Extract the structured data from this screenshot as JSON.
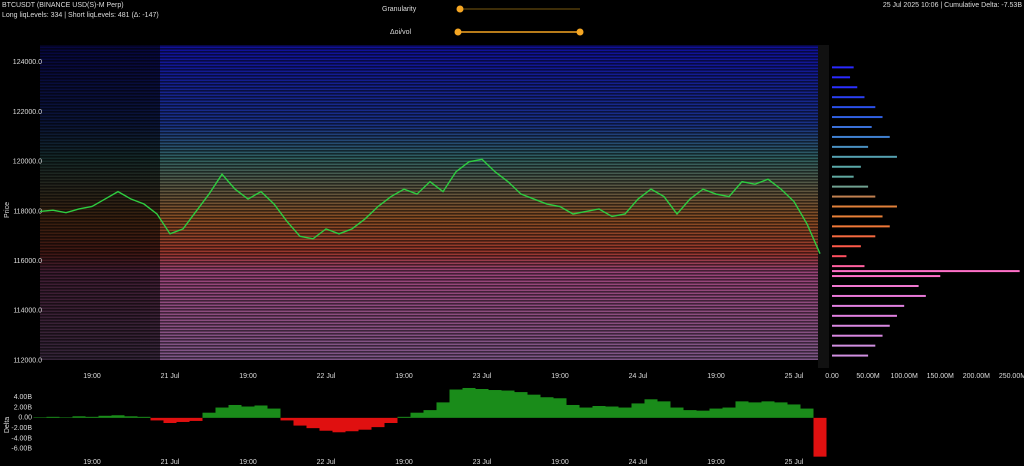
{
  "header": {
    "symbol": "BTCUSDT (BINANCE USD(S)-M Perp)",
    "levels": "Long liqLevels: 334 | Short liqLevels: 481 (Δ: -147)",
    "status": "25 Jul 2025 10:06 | Cumulative Delta: -7.53B"
  },
  "controls": {
    "granularity": "Granularity",
    "delta_oi_vol": "Δoi/vol"
  },
  "chart_data": [
    {
      "type": "line",
      "y_label": "Price",
      "color": "#2ecc40",
      "categories": [
        null,
        null,
        null,
        null,
        "19:00",
        null,
        null,
        null,
        null,
        null,
        "21 Jul",
        null,
        null,
        null,
        null,
        null,
        "19:00",
        null,
        null,
        null,
        null,
        null,
        "22 Jul",
        null,
        null,
        null,
        null,
        null,
        "19:00",
        null,
        null,
        null,
        null,
        null,
        "23 Jul",
        null,
        null,
        null,
        null,
        null,
        "19:00",
        null,
        null,
        null,
        null,
        null,
        "24 Jul",
        null,
        null,
        null,
        null,
        null,
        "19:00",
        null,
        null,
        null,
        null,
        null,
        "25 Jul",
        null,
        null
      ],
      "values": [
        118000,
        118050,
        117950,
        118100,
        118200,
        118500,
        118800,
        118500,
        118300,
        117900,
        117100,
        117300,
        118000,
        118700,
        119500,
        118900,
        118500,
        118800,
        118300,
        117600,
        117000,
        116900,
        117300,
        117100,
        117300,
        117700,
        118200,
        118600,
        118900,
        118700,
        119200,
        118800,
        119600,
        120000,
        120100,
        119600,
        119200,
        118700,
        118500,
        118300,
        118200,
        117900,
        118000,
        118100,
        117800,
        117900,
        118500,
        118900,
        118600,
        117900,
        118500,
        118900,
        118700,
        118600,
        119200,
        119100,
        119300,
        118900,
        118400,
        117500,
        116300
      ],
      "ylim": [
        111700,
        124700
      ],
      "yticks": [
        {
          "value": 112000,
          "label": "112000.0"
        },
        {
          "value": 114000,
          "label": "114000.0"
        },
        {
          "value": 116000,
          "label": "116000.0"
        },
        {
          "value": 118000,
          "label": "118000.0"
        },
        {
          "value": 120000,
          "label": "120000.0"
        },
        {
          "value": 122000,
          "label": "122000.0"
        },
        {
          "value": 124000,
          "label": "124000.0"
        }
      ]
    },
    {
      "type": "hbar",
      "y": [
        123800,
        123400,
        123000,
        122600,
        122200,
        121800,
        121400,
        121000,
        120600,
        120200,
        119800,
        119400,
        119000,
        118600,
        118200,
        117800,
        117400,
        117000,
        116600,
        116200,
        115800,
        115600,
        115400,
        115000,
        114600,
        114200,
        113800,
        113400,
        113000,
        112600,
        112200
      ],
      "values": [
        30000000,
        25000000,
        35000000,
        45000000,
        60000000,
        70000000,
        55000000,
        80000000,
        50000000,
        90000000,
        40000000,
        30000000,
        50000000,
        60000000,
        90000000,
        70000000,
        80000000,
        60000000,
        40000000,
        20000000,
        45000000,
        260000000,
        150000000,
        120000000,
        130000000,
        100000000,
        90000000,
        80000000,
        70000000,
        60000000,
        50000000
      ],
      "colors": [
        "#2a2aff",
        "#2a2aff",
        "#2a30ff",
        "#2a40f0",
        "#2a50e8",
        "#3060e0",
        "#3a70d8",
        "#4080d0",
        "#4a90c0",
        "#55a0b0",
        "#5aa8a8",
        "#60a8a0",
        "#70a090",
        "#c08050",
        "#e0803a",
        "#e88038",
        "#f07838",
        "#f56a40",
        "#ff5a4a",
        "#ff5060",
        "#ff60a0",
        "#ff70c8",
        "#ff70c8",
        "#f078d0",
        "#e878d8",
        "#e080e0",
        "#e080e0",
        "#d888e0",
        "#d888e0",
        "#d090e0",
        "#d090e0"
      ],
      "ylim": [
        111700,
        124700
      ],
      "xlim": [
        0,
        266000000
      ],
      "xticks": [
        {
          "value": 0,
          "label": "0.00"
        },
        {
          "value": 50000000,
          "label": "50.00M"
        },
        {
          "value": 100000000,
          "label": "100.00M"
        },
        {
          "value": 150000000,
          "label": "150.00M"
        },
        {
          "value": 200000000,
          "label": "200.00M"
        },
        {
          "value": 250000000,
          "label": "250.00M"
        }
      ]
    },
    {
      "type": "bar",
      "y_label": "Delta",
      "positive_color": "#1a8c1a",
      "negative_color": "#e01010",
      "categories": [
        null,
        null,
        null,
        null,
        "19:00",
        null,
        null,
        null,
        null,
        null,
        "21 Jul",
        null,
        null,
        null,
        null,
        null,
        "19:00",
        null,
        null,
        null,
        null,
        null,
        "22 Jul",
        null,
        null,
        null,
        null,
        null,
        "19:00",
        null,
        null,
        null,
        null,
        null,
        "23 Jul",
        null,
        null,
        null,
        null,
        null,
        "19:00",
        null,
        null,
        null,
        null,
        null,
        "24 Jul",
        null,
        null,
        null,
        null,
        null,
        "19:00",
        null,
        null,
        null,
        null,
        null,
        "25 Jul",
        null,
        null
      ],
      "values": [
        0.1,
        0.2,
        0.1,
        0.3,
        0.2,
        0.4,
        0.5,
        0.3,
        0.2,
        -0.5,
        -1.0,
        -0.8,
        -0.6,
        1.0,
        2.0,
        2.5,
        2.2,
        2.4,
        1.8,
        -0.5,
        -1.5,
        -2.0,
        -2.5,
        -2.8,
        -2.6,
        -2.3,
        -1.8,
        -1.0,
        0.2,
        1.0,
        1.5,
        3.0,
        5.5,
        5.8,
        5.6,
        5.4,
        5.3,
        5.0,
        4.5,
        4.0,
        3.8,
        2.5,
        2.0,
        2.3,
        2.2,
        2.0,
        2.8,
        3.6,
        3.2,
        2.0,
        1.5,
        1.4,
        1.8,
        2.0,
        3.2,
        3.0,
        3.2,
        3.0,
        2.6,
        1.8,
        -7.53
      ],
      "ylim": [
        -7.6,
        5.6
      ],
      "yticks": [
        {
          "value": -6,
          "label": "-6.00B"
        },
        {
          "value": -4,
          "label": "-4.00B"
        },
        {
          "value": -2,
          "label": "-2.00B"
        },
        {
          "value": 0,
          "label": "0.00"
        },
        {
          "value": 2,
          "label": "2.00B"
        },
        {
          "value": 4,
          "label": "4.00B"
        }
      ]
    }
  ]
}
